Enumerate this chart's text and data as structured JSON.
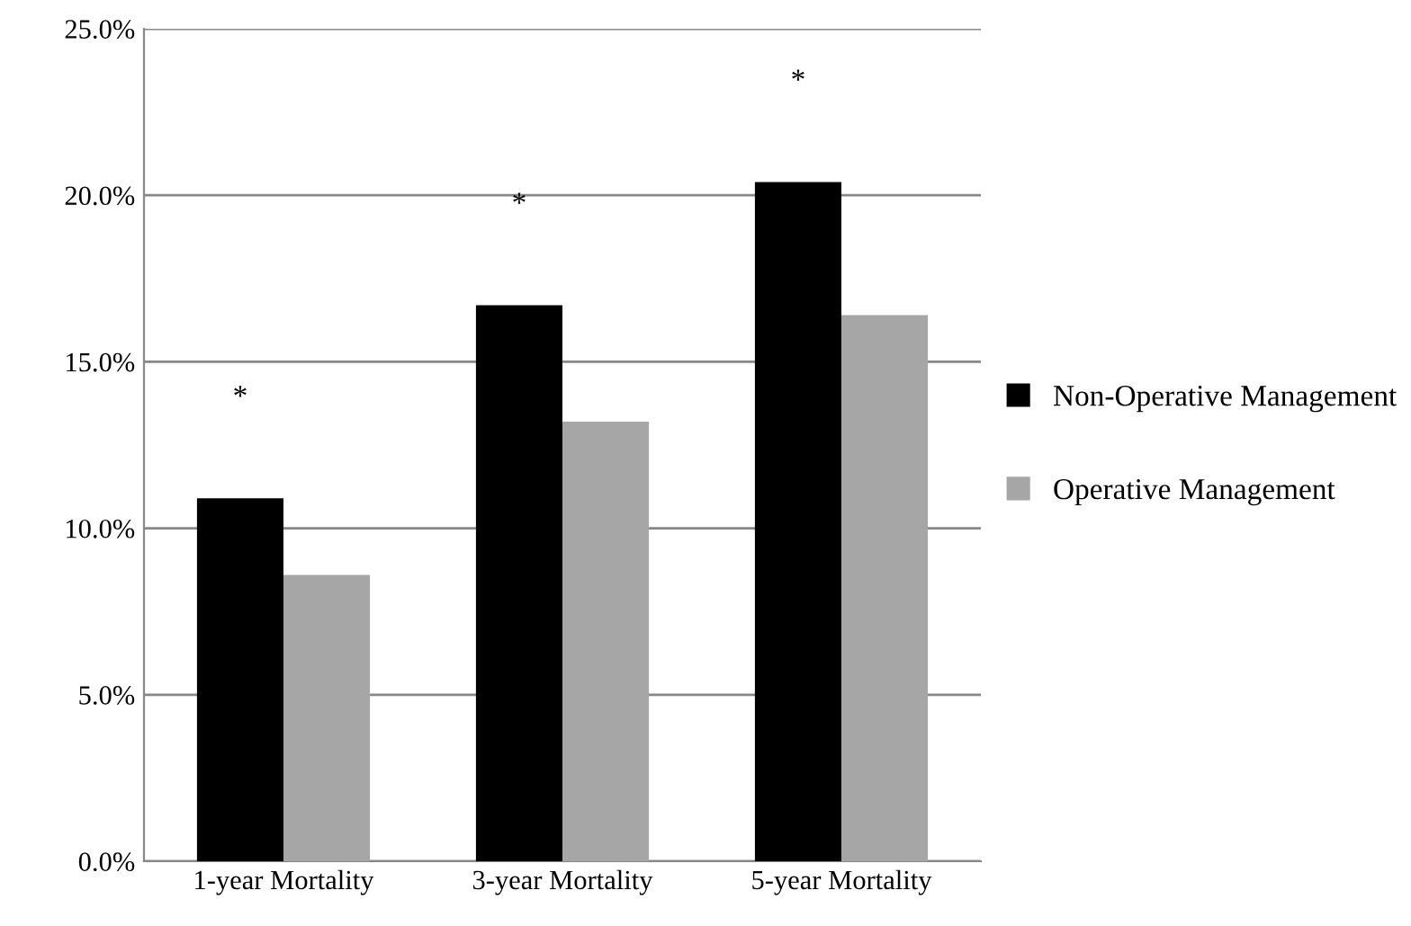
{
  "chart_data": {
    "type": "bar",
    "categories": [
      "1-year Mortality",
      "3-year Mortality",
      "5-year Mortality"
    ],
    "series": [
      {
        "name": "Non-Operative Management",
        "color": "#000000",
        "values": [
          10.9,
          16.7,
          20.4
        ]
      },
      {
        "name": "Operative Management",
        "color": "#a6a6a6",
        "values": [
          8.6,
          13.2,
          16.4
        ]
      }
    ],
    "ylim": [
      0,
      25
    ],
    "yticks": [
      {
        "value": 0,
        "label": "0.0%"
      },
      {
        "value": 5,
        "label": "5.0%"
      },
      {
        "value": 10,
        "label": "10.0%"
      },
      {
        "value": 15,
        "label": "15.0%"
      },
      {
        "value": 20,
        "label": "20.0%"
      },
      {
        "value": 25,
        "label": "25.0%"
      }
    ],
    "grid": "y",
    "legend": "right",
    "annotations": [
      "*",
      "*",
      "*"
    ]
  }
}
